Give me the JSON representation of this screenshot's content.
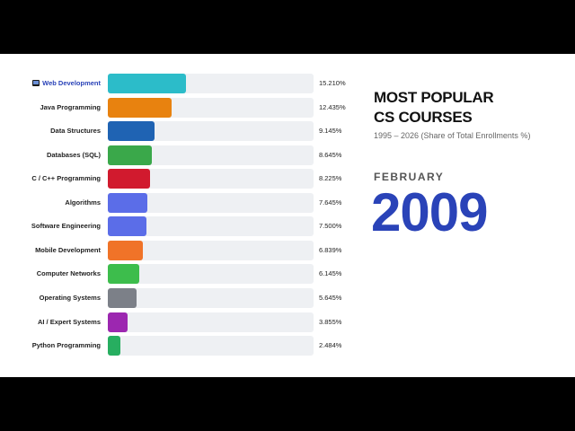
{
  "header": {
    "title_line1": "MOST POPULAR",
    "title_line2": "CS COURSES",
    "subtitle": "1995 – 2026 (Share of Total Enrollments %)"
  },
  "timeline": {
    "month": "FEBRUARY",
    "year": "2009"
  },
  "chart_data": {
    "type": "bar",
    "orientation": "horizontal",
    "xlim": [
      0,
      40
    ],
    "categories": [
      "Web Development",
      "Java Programming",
      "Data Structures",
      "Databases (SQL)",
      "C / C++ Programming",
      "Algorithms",
      "Software Engineering",
      "Mobile Development",
      "Computer Networks",
      "Operating Systems",
      "AI / Expert Systems",
      "Python Programming"
    ],
    "values": [
      15.21,
      12.435,
      9.145,
      8.645,
      8.225,
      7.645,
      7.5,
      6.839,
      6.145,
      5.645,
      3.855,
      2.484
    ],
    "value_labels": [
      "15.210%",
      "12.435%",
      "9.145%",
      "8.645%",
      "8.225%",
      "7.645%",
      "7.500%",
      "6.839%",
      "6.145%",
      "5.645%",
      "3.855%",
      "2.484%"
    ],
    "colors": [
      "#2cbcc9",
      "#e8820f",
      "#1f63b3",
      "#3aa84a",
      "#d11a2e",
      "#5b6de8",
      "#5b6de8",
      "#f07328",
      "#3dbd4c",
      "#7c8088",
      "#9c27b0",
      "#27ae60"
    ],
    "highlight_index": 0,
    "highlight_icon": "monitor-icon"
  }
}
